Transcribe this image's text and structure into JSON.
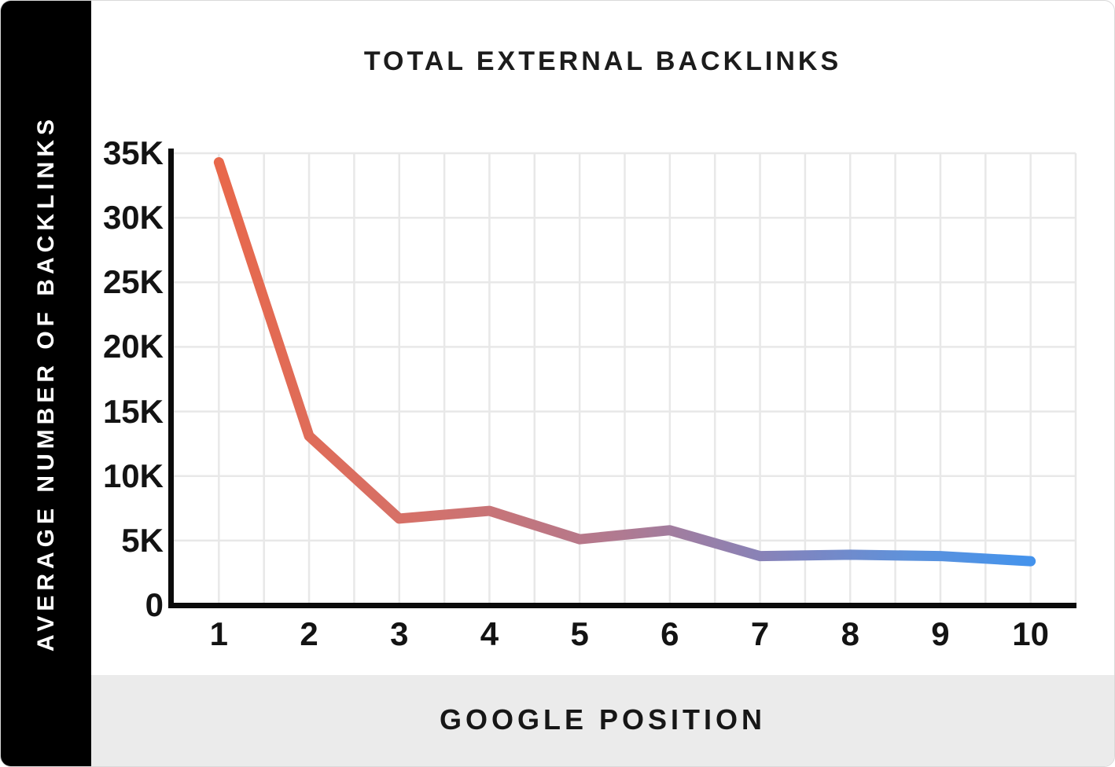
{
  "sidebar": {
    "label": "AVERAGE NUMBER OF BACKLINKS"
  },
  "header": {
    "title": "TOTAL EXTERNAL BACKLINKS"
  },
  "footer": {
    "xlabel": "GOOGLE POSITION"
  },
  "chart_data": {
    "type": "line",
    "title": "TOTAL EXTERNAL BACKLINKS",
    "xlabel": "GOOGLE POSITION",
    "ylabel": "AVERAGE NUMBER OF BACKLINKS",
    "x": [
      1,
      2,
      3,
      4,
      5,
      6,
      7,
      8,
      9,
      10
    ],
    "values": [
      34300,
      13100,
      6700,
      7300,
      5100,
      5800,
      3800,
      3900,
      3800,
      3400
    ],
    "x_tick_labels": [
      "1",
      "2",
      "3",
      "4",
      "5",
      "6",
      "7",
      "8",
      "9",
      "10"
    ],
    "y_ticks": [
      {
        "value": 35000,
        "label": "35K"
      },
      {
        "value": 30000,
        "label": "30K"
      },
      {
        "value": 25000,
        "label": "25K"
      },
      {
        "value": 20000,
        "label": "20K"
      },
      {
        "value": 15000,
        "label": "15K"
      },
      {
        "value": 10000,
        "label": "10K"
      },
      {
        "value": 5000,
        "label": "5K"
      },
      {
        "value": 0,
        "label": "0"
      }
    ],
    "ylim": [
      0,
      35000
    ],
    "grid": {
      "show": true,
      "color": "#e8e8e8",
      "vertical_divisions_per_position": 2
    },
    "legend": {
      "show": false
    },
    "line": {
      "width": 13,
      "gradient": [
        {
          "offset": 0,
          "color": "#E8684B"
        },
        {
          "offset": 0.25,
          "color": "#D4716A"
        },
        {
          "offset": 0.5,
          "color": "#AF7A92"
        },
        {
          "offset": 0.7,
          "color": "#8184BE"
        },
        {
          "offset": 0.85,
          "color": "#5E92DB"
        },
        {
          "offset": 1,
          "color": "#4493EC"
        }
      ]
    },
    "colors": {
      "axis": "#0b0b0b",
      "tick_text": "#131313",
      "background": "#ffffff"
    }
  }
}
